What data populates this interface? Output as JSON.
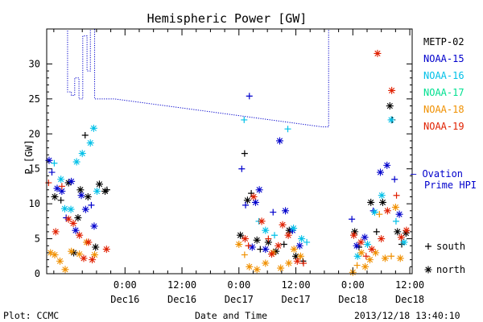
{
  "chart_data": {
    "type": "scatter",
    "title": "Hemispheric Power [GW]",
    "ylabel": "P [GW]",
    "xlabel": "Date and Time",
    "footer_left": "Plot: CCMC",
    "footer_right": "2013/12/18 13:40:10",
    "ylim": [
      0,
      35
    ],
    "xlim_hours": [
      -16.5,
      60.5
    ],
    "y_ticks": [
      "0",
      "5",
      "10",
      "15",
      "20",
      "25",
      "30"
    ],
    "y_tick_values": [
      0,
      5,
      10,
      15,
      20,
      25,
      30
    ],
    "x_ticks": [
      {
        "hour": 0,
        "time": "0:00",
        "date": "Dec16"
      },
      {
        "hour": 12,
        "time": "12:00",
        "date": "Dec16"
      },
      {
        "hour": 24,
        "time": "0:00",
        "date": "Dec17"
      },
      {
        "hour": 36,
        "time": "12:00",
        "date": "Dec17"
      },
      {
        "hour": 48,
        "time": "0:00",
        "date": "Dec18"
      },
      {
        "hour": 60,
        "time": "12:00",
        "date": "Dec18"
      }
    ],
    "x_units": "hours relative to 2013-12-16 00:00",
    "series": [
      {
        "name": "METP-02",
        "color": "#000000",
        "points": [
          {
            "x": -14.8,
            "y": 11.0,
            "m": "*"
          },
          {
            "x": -13.5,
            "y": 10.5,
            "m": "+"
          },
          {
            "x": -11.9,
            "y": 13.0,
            "m": "*"
          },
          {
            "x": -10.8,
            "y": 3.0,
            "m": "*"
          },
          {
            "x": -9.9,
            "y": 8.0,
            "m": "*"
          },
          {
            "x": -9.4,
            "y": 12.0,
            "m": "*"
          },
          {
            "x": -8.4,
            "y": 19.8,
            "m": "+"
          },
          {
            "x": -7.8,
            "y": 11.0,
            "m": "*"
          },
          {
            "x": -6.2,
            "y": 3.8,
            "m": "*"
          },
          {
            "x": -5.4,
            "y": 12.8,
            "m": "*"
          },
          {
            "x": -4.2,
            "y": 11.8,
            "m": "*"
          },
          {
            "x": -3.8,
            "y": 12.0,
            "m": "+"
          },
          {
            "x": 24.3,
            "y": 5.5,
            "m": "*"
          },
          {
            "x": 25.2,
            "y": 17.2,
            "m": "+"
          },
          {
            "x": 25.8,
            "y": 10.5,
            "m": "*"
          },
          {
            "x": 26.6,
            "y": 11.5,
            "m": "+"
          },
          {
            "x": 27.8,
            "y": 4.8,
            "m": "*"
          },
          {
            "x": 28.5,
            "y": 3.5,
            "m": "+"
          },
          {
            "x": 30.2,
            "y": 4.5,
            "m": "*"
          },
          {
            "x": 31.8,
            "y": 3.2,
            "m": "*"
          },
          {
            "x": 33.5,
            "y": 4.2,
            "m": "+"
          },
          {
            "x": 34.6,
            "y": 6.2,
            "m": "*"
          },
          {
            "x": 36.0,
            "y": 2.5,
            "m": "*"
          },
          {
            "x": 37.5,
            "y": 1.8,
            "m": "+"
          },
          {
            "x": 48.4,
            "y": 6.0,
            "m": "*"
          },
          {
            "x": 49.3,
            "y": 3.8,
            "m": "+"
          },
          {
            "x": 51.8,
            "y": 10.2,
            "m": "*"
          },
          {
            "x": 53.0,
            "y": 6.0,
            "m": "+"
          },
          {
            "x": 54.3,
            "y": 10.2,
            "m": "*"
          },
          {
            "x": 55.8,
            "y": 24.0,
            "m": "*"
          },
          {
            "x": 56.3,
            "y": 22.0,
            "m": "+"
          },
          {
            "x": 57.4,
            "y": 6.0,
            "m": "*"
          },
          {
            "x": 58.3,
            "y": 4.2,
            "m": "+"
          },
          {
            "x": 59.2,
            "y": 5.8,
            "m": "*"
          }
        ]
      },
      {
        "name": "NOAA-15",
        "color": "#0000cc",
        "points": [
          {
            "x": -16.0,
            "y": 16.2,
            "m": "*"
          },
          {
            "x": -15.4,
            "y": 14.5,
            "m": "+"
          },
          {
            "x": -14.3,
            "y": 12.2,
            "m": "*"
          },
          {
            "x": -13.3,
            "y": 11.8,
            "m": "*"
          },
          {
            "x": -12.4,
            "y": 8.0,
            "m": "+"
          },
          {
            "x": -11.3,
            "y": 13.2,
            "m": "*"
          },
          {
            "x": -10.4,
            "y": 6.2,
            "m": "*"
          },
          {
            "x": -9.2,
            "y": 11.2,
            "m": "*"
          },
          {
            "x": -8.3,
            "y": 9.2,
            "m": "*"
          },
          {
            "x": -7.1,
            "y": 9.8,
            "m": "+"
          },
          {
            "x": -6.5,
            "y": 6.8,
            "m": "*"
          },
          {
            "x": 24.6,
            "y": 15.0,
            "m": "+"
          },
          {
            "x": 25.4,
            "y": 9.8,
            "m": "+"
          },
          {
            "x": 26.2,
            "y": 25.4,
            "m": "+"
          },
          {
            "x": 26.8,
            "y": 3.8,
            "m": "*"
          },
          {
            "x": 27.5,
            "y": 10.2,
            "m": "*"
          },
          {
            "x": 28.3,
            "y": 12.0,
            "m": "*"
          },
          {
            "x": 29.6,
            "y": 3.5,
            "m": "*"
          },
          {
            "x": 31.2,
            "y": 8.8,
            "m": "+"
          },
          {
            "x": 32.6,
            "y": 19.0,
            "m": "*"
          },
          {
            "x": 33.8,
            "y": 9.0,
            "m": "*"
          },
          {
            "x": 35.3,
            "y": 6.2,
            "m": "*"
          },
          {
            "x": 36.8,
            "y": 4.0,
            "m": "*"
          },
          {
            "x": 47.8,
            "y": 7.8,
            "m": "+"
          },
          {
            "x": 48.8,
            "y": 4.0,
            "m": "*"
          },
          {
            "x": 50.5,
            "y": 5.2,
            "m": "*"
          },
          {
            "x": 52.3,
            "y": 9.0,
            "m": "+"
          },
          {
            "x": 53.8,
            "y": 14.5,
            "m": "*"
          },
          {
            "x": 55.2,
            "y": 15.5,
            "m": "*"
          },
          {
            "x": 56.8,
            "y": 13.5,
            "m": "+"
          },
          {
            "x": 57.8,
            "y": 8.5,
            "m": "*"
          }
        ]
      },
      {
        "name": "NOAA-16",
        "color": "#00c0e8",
        "points": [
          {
            "x": -14.9,
            "y": 15.8,
            "m": "+"
          },
          {
            "x": -13.5,
            "y": 13.5,
            "m": "*"
          },
          {
            "x": -12.7,
            "y": 9.3,
            "m": "*"
          },
          {
            "x": -11.4,
            "y": 9.2,
            "m": "*"
          },
          {
            "x": -10.2,
            "y": 16.0,
            "m": "*"
          },
          {
            "x": -9.0,
            "y": 17.2,
            "m": "*"
          },
          {
            "x": -7.3,
            "y": 18.7,
            "m": "*"
          },
          {
            "x": -6.6,
            "y": 20.8,
            "m": "*"
          },
          {
            "x": -5.9,
            "y": 11.8,
            "m": "*"
          },
          {
            "x": 25.1,
            "y": 22.0,
            "m": "+"
          },
          {
            "x": 28.2,
            "y": 7.5,
            "m": "+"
          },
          {
            "x": 29.6,
            "y": 6.2,
            "m": "*"
          },
          {
            "x": 31.5,
            "y": 5.5,
            "m": "+"
          },
          {
            "x": 34.3,
            "y": 20.7,
            "m": "+"
          },
          {
            "x": 35.5,
            "y": 6.5,
            "m": "*"
          },
          {
            "x": 37.2,
            "y": 5.0,
            "m": "*"
          },
          {
            "x": 38.3,
            "y": 4.5,
            "m": "+"
          },
          {
            "x": 49.0,
            "y": 2.5,
            "m": "*"
          },
          {
            "x": 51.1,
            "y": 4.2,
            "m": "*"
          },
          {
            "x": 52.6,
            "y": 8.8,
            "m": "*"
          },
          {
            "x": 54.1,
            "y": 11.2,
            "m": "*"
          },
          {
            "x": 56.1,
            "y": 22.0,
            "m": "*"
          },
          {
            "x": 57.1,
            "y": 7.5,
            "m": "+"
          },
          {
            "x": 58.8,
            "y": 4.5,
            "m": "*"
          }
        ]
      },
      {
        "name": "NOAA-17",
        "color": "#00e090",
        "points": []
      },
      {
        "name": "NOAA-18",
        "color": "#f09000",
        "points": [
          {
            "x": -15.7,
            "y": 3.0,
            "m": "*"
          },
          {
            "x": -14.8,
            "y": 2.7,
            "m": "*"
          },
          {
            "x": -13.7,
            "y": 1.8,
            "m": "*"
          },
          {
            "x": -12.6,
            "y": 0.6,
            "m": "*"
          },
          {
            "x": -11.3,
            "y": 3.2,
            "m": "*"
          },
          {
            "x": -9.6,
            "y": 2.8,
            "m": "*"
          },
          {
            "x": -8.1,
            "y": 4.5,
            "m": "*"
          },
          {
            "x": -6.4,
            "y": 2.7,
            "m": "*"
          },
          {
            "x": 24.0,
            "y": 4.2,
            "m": "*"
          },
          {
            "x": 25.2,
            "y": 2.7,
            "m": "+"
          },
          {
            "x": 26.2,
            "y": 1.0,
            "m": "*"
          },
          {
            "x": 27.8,
            "y": 0.6,
            "m": "*"
          },
          {
            "x": 29.6,
            "y": 1.5,
            "m": "*"
          },
          {
            "x": 31.2,
            "y": 3.0,
            "m": "*"
          },
          {
            "x": 32.8,
            "y": 0.8,
            "m": "*"
          },
          {
            "x": 34.5,
            "y": 1.5,
            "m": "*"
          },
          {
            "x": 35.6,
            "y": 3.5,
            "m": "*"
          },
          {
            "x": 37.0,
            "y": 2.5,
            "m": "*"
          },
          {
            "x": 48.0,
            "y": 0.2,
            "m": "*"
          },
          {
            "x": 48.9,
            "y": 1.2,
            "m": "+"
          },
          {
            "x": 49.8,
            "y": 3.0,
            "m": "*"
          },
          {
            "x": 50.6,
            "y": 1.0,
            "m": "*"
          },
          {
            "x": 51.6,
            "y": 2.0,
            "m": "*"
          },
          {
            "x": 52.8,
            "y": 3.0,
            "m": "*"
          },
          {
            "x": 53.6,
            "y": 8.5,
            "m": "+"
          },
          {
            "x": 54.8,
            "y": 2.2,
            "m": "*"
          },
          {
            "x": 56.1,
            "y": 2.5,
            "m": "+"
          },
          {
            "x": 57.0,
            "y": 9.5,
            "m": "*"
          },
          {
            "x": 58.0,
            "y": 2.2,
            "m": "*"
          }
        ]
      },
      {
        "name": "NOAA-19",
        "color": "#e02000",
        "points": [
          {
            "x": -16.1,
            "y": 13.0,
            "m": "+"
          },
          {
            "x": -14.6,
            "y": 6.0,
            "m": "*"
          },
          {
            "x": -13.3,
            "y": 12.5,
            "m": "+"
          },
          {
            "x": -11.9,
            "y": 7.8,
            "m": "*"
          },
          {
            "x": -10.9,
            "y": 7.2,
            "m": "*"
          },
          {
            "x": -9.6,
            "y": 5.5,
            "m": "*"
          },
          {
            "x": -8.7,
            "y": 2.2,
            "m": "*"
          },
          {
            "x": -7.7,
            "y": 4.5,
            "m": "*"
          },
          {
            "x": -6.9,
            "y": 2.0,
            "m": "*"
          },
          {
            "x": -3.9,
            "y": 3.5,
            "m": "*"
          },
          {
            "x": 25.3,
            "y": 5.0,
            "m": "*"
          },
          {
            "x": 26.0,
            "y": 4.0,
            "m": "+"
          },
          {
            "x": 27.1,
            "y": 11.0,
            "m": "*"
          },
          {
            "x": 28.8,
            "y": 7.5,
            "m": "*"
          },
          {
            "x": 30.2,
            "y": 5.0,
            "m": "+"
          },
          {
            "x": 30.9,
            "y": 2.8,
            "m": "*"
          },
          {
            "x": 32.3,
            "y": 4.0,
            "m": "*"
          },
          {
            "x": 33.2,
            "y": 7.0,
            "m": "*"
          },
          {
            "x": 34.4,
            "y": 5.5,
            "m": "*"
          },
          {
            "x": 36.3,
            "y": 1.8,
            "m": "*"
          },
          {
            "x": 37.6,
            "y": 1.5,
            "m": "+"
          },
          {
            "x": 48.2,
            "y": 5.5,
            "m": "*"
          },
          {
            "x": 49.7,
            "y": 4.5,
            "m": "*"
          },
          {
            "x": 50.8,
            "y": 2.5,
            "m": "+"
          },
          {
            "x": 52.0,
            "y": 3.5,
            "m": "*"
          },
          {
            "x": 53.2,
            "y": 31.5,
            "m": "*"
          },
          {
            "x": 54.0,
            "y": 5.0,
            "m": "*"
          },
          {
            "x": 55.3,
            "y": 9.0,
            "m": "*"
          },
          {
            "x": 56.2,
            "y": 26.2,
            "m": "*"
          },
          {
            "x": 57.2,
            "y": 11.2,
            "m": "+"
          },
          {
            "x": 58.2,
            "y": 5.2,
            "m": "*"
          },
          {
            "x": 59.3,
            "y": 6.2,
            "m": "*"
          }
        ]
      }
    ],
    "ovation": {
      "label_line1": "— Ovation",
      "label_line2": "Prime HPI",
      "color": "#0000cc",
      "bg_points": [
        {
          "x": -16.5,
          "y": 35.0
        },
        {
          "x": -14.2,
          "y": 35.0
        },
        {
          "x": -13.4,
          "y": 35.0
        },
        {
          "x": -12.1,
          "y": 26.0
        },
        {
          "x": -11.3,
          "y": 25.5
        },
        {
          "x": -10.6,
          "y": 28.0
        },
        {
          "x": -9.7,
          "y": 25.0
        },
        {
          "x": -8.9,
          "y": 34.0
        },
        {
          "x": -8.0,
          "y": 29.0
        },
        {
          "x": -7.3,
          "y": 35.0
        },
        {
          "x": -6.4,
          "y": 25.0
        },
        {
          "x": -2.2,
          "y": 25.0
        },
        {
          "x": 41.6,
          "y": 21.0
        },
        {
          "x": 42.8,
          "y": 21.0
        },
        {
          "x": 42.9,
          "y": 35.0
        }
      ]
    },
    "markers": {
      "south": "+",
      "north": "*"
    },
    "marker_legend": [
      {
        "symbol": "+",
        "label": "south"
      },
      {
        "symbol": "*",
        "label": "north"
      }
    ],
    "grid": false,
    "legend_position": "right"
  }
}
